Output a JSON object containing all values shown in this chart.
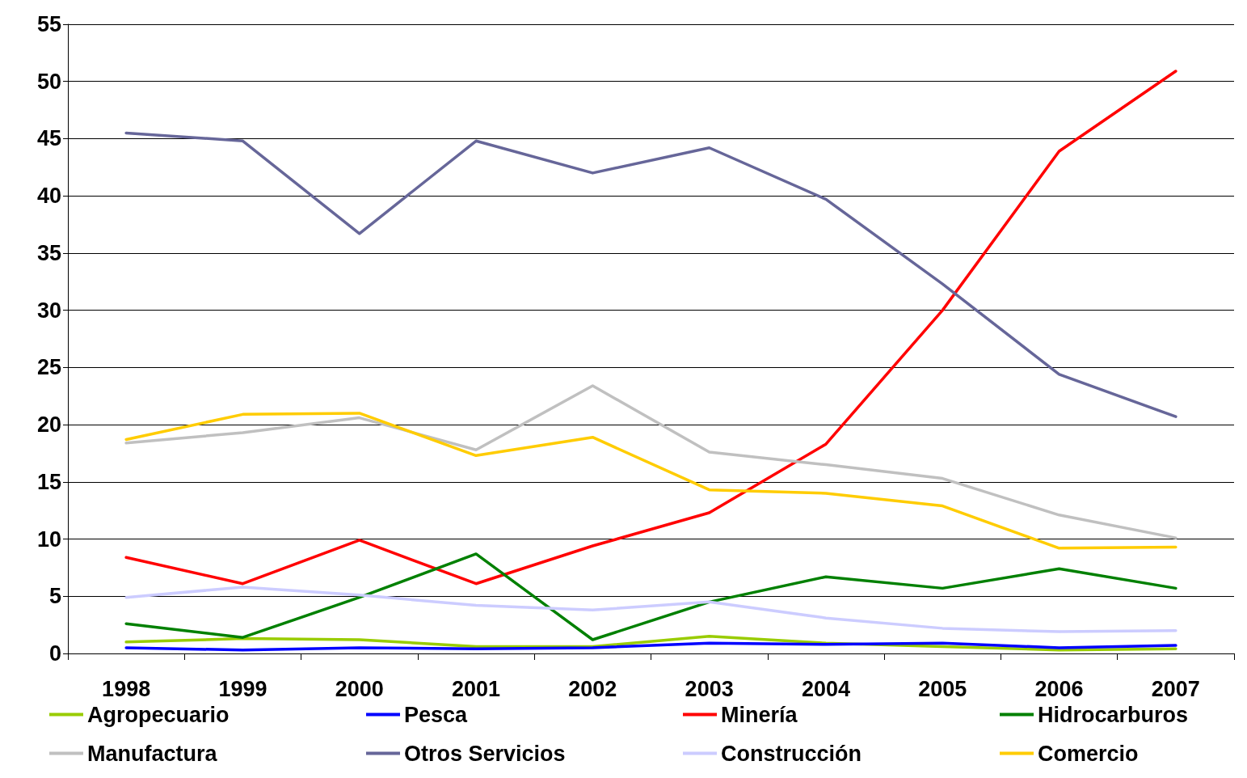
{
  "chart_data": {
    "type": "line",
    "categories": [
      "1998",
      "1999",
      "2000",
      "2001",
      "2002",
      "2003",
      "2004",
      "2005",
      "2006",
      "2007"
    ],
    "ylim": [
      0,
      55
    ],
    "yticks": [
      0,
      5,
      10,
      15,
      20,
      25,
      30,
      35,
      40,
      45,
      50,
      55
    ],
    "grid": "y",
    "legend": "bottom",
    "marker": "none",
    "line_style": "solid",
    "series": [
      {
        "name": "Agropecuario",
        "color": "#99cc00",
        "values": [
          1.0,
          1.3,
          1.2,
          0.6,
          0.6,
          1.5,
          0.9,
          0.6,
          0.3,
          0.4
        ]
      },
      {
        "name": "Pesca",
        "color": "#0000ff",
        "values": [
          0.5,
          0.3,
          0.5,
          0.4,
          0.5,
          0.9,
          0.8,
          0.9,
          0.5,
          0.7
        ]
      },
      {
        "name": "Minería",
        "color": "#ff0000",
        "values": [
          8.4,
          6.1,
          9.9,
          6.1,
          9.4,
          12.3,
          18.3,
          30.0,
          43.9,
          50.9
        ]
      },
      {
        "name": "Hidrocarburos",
        "color": "#008000",
        "values": [
          2.6,
          1.4,
          4.9,
          8.7,
          1.2,
          4.5,
          6.7,
          5.7,
          7.4,
          5.7
        ]
      },
      {
        "name": "Manufactura",
        "color": "#c0c0c0",
        "values": [
          18.4,
          19.3,
          20.6,
          17.8,
          23.4,
          17.6,
          16.5,
          15.3,
          12.1,
          10.1
        ]
      },
      {
        "name": "Otros Servicios",
        "color": "#666699",
        "values": [
          45.5,
          44.8,
          36.7,
          44.8,
          42.0,
          44.2,
          39.7,
          32.3,
          24.4,
          20.7
        ]
      },
      {
        "name": "Construcción",
        "color": "#ccccff",
        "values": [
          4.9,
          5.8,
          5.1,
          4.2,
          3.8,
          4.5,
          3.1,
          2.2,
          1.9,
          2.0
        ]
      },
      {
        "name": "Comercio",
        "color": "#ffcc00",
        "values": [
          18.7,
          20.9,
          21.0,
          17.3,
          18.9,
          14.3,
          14.0,
          12.9,
          9.2,
          9.3
        ]
      }
    ]
  }
}
